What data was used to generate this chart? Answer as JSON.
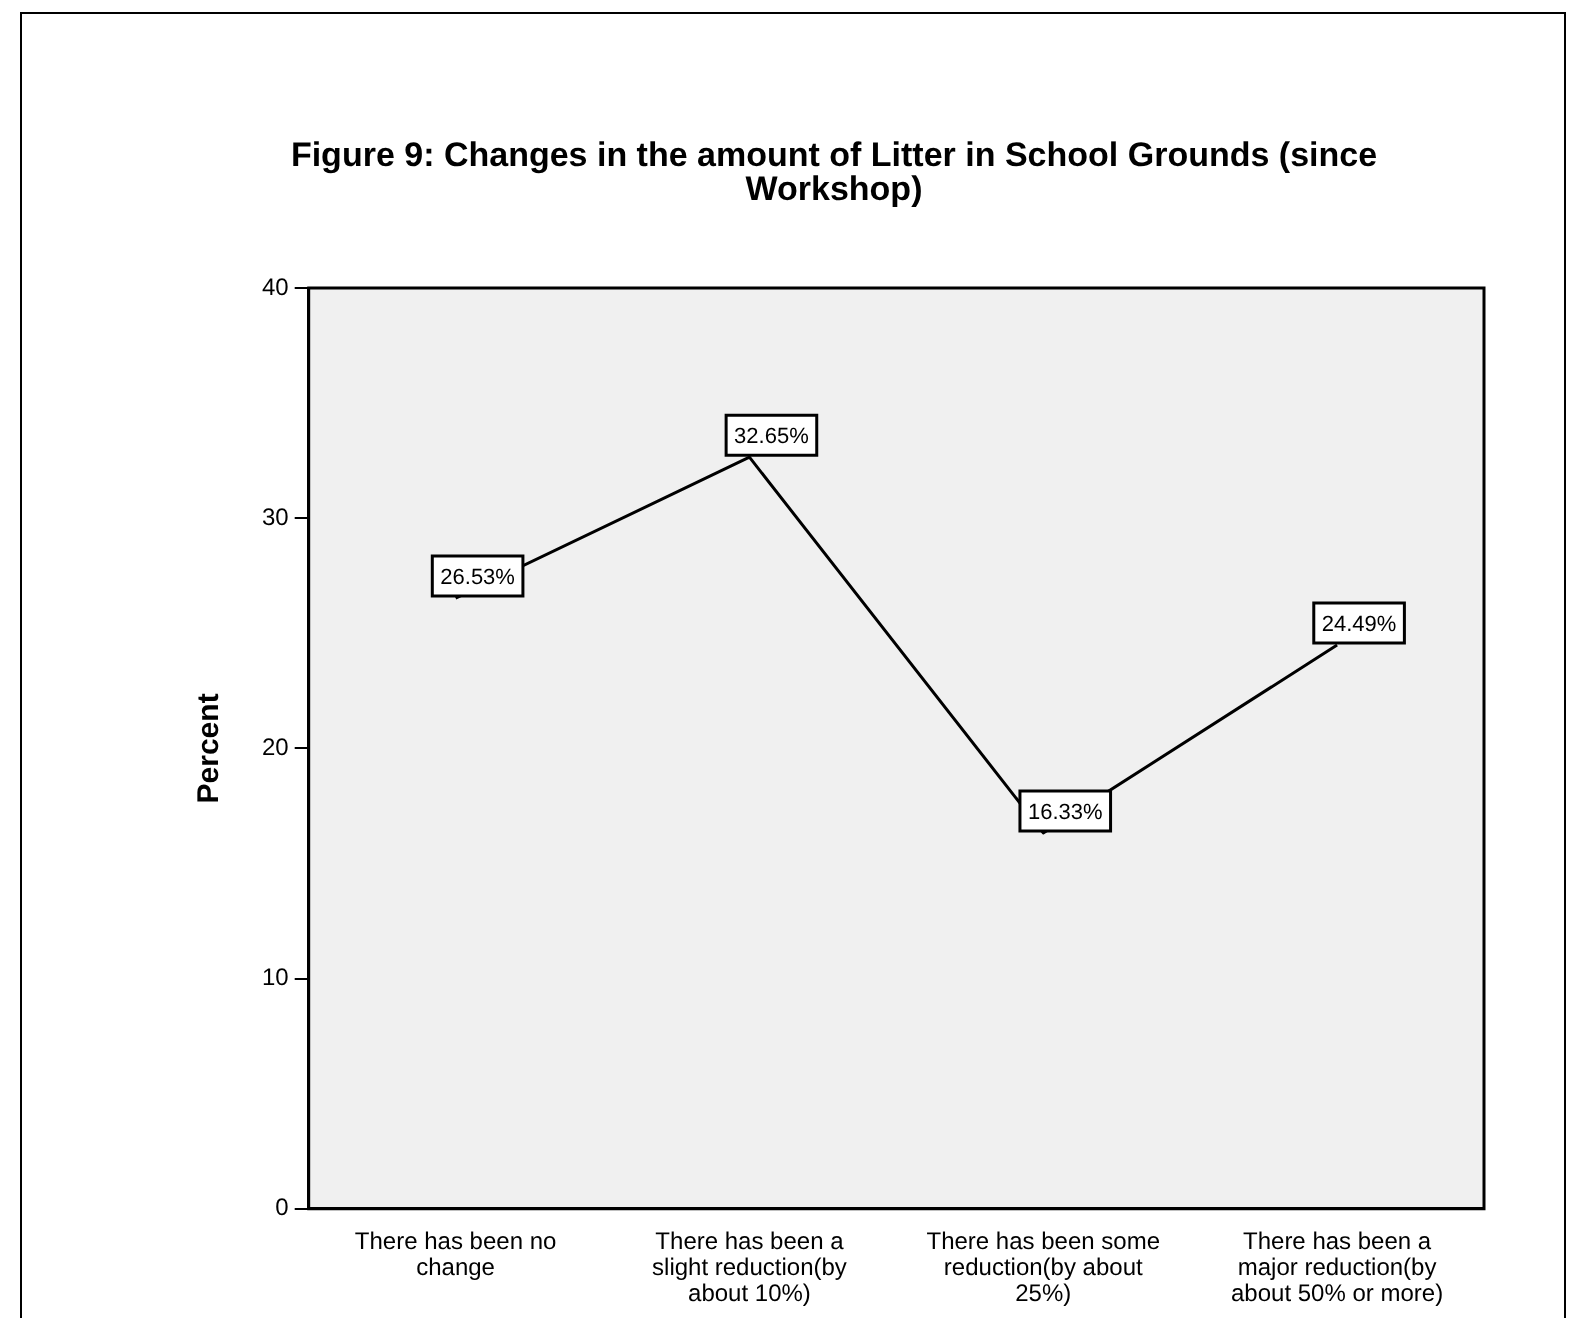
{
  "chart_data": {
    "type": "line",
    "title": "Figure 9: Changes in the amount of Litter in School Grounds (since Workshop)",
    "ylabel": "Percent",
    "categories": [
      "There has been no change",
      "There has been a slight reduction(by about 10%)",
      "There has been some reduction(by about 25%)",
      "There has been a major reduction(by about 50% or more)"
    ],
    "values": [
      26.53,
      32.65,
      16.33,
      24.49
    ],
    "value_labels": [
      "26.53%",
      "32.65%",
      "16.33%",
      "24.49%"
    ],
    "color": "#000000",
    "ylim": [
      0,
      40
    ],
    "yticks": [
      0,
      10,
      20,
      30,
      40
    ],
    "grid": false,
    "legend": false,
    "marker": "none",
    "line_style": "solid"
  }
}
